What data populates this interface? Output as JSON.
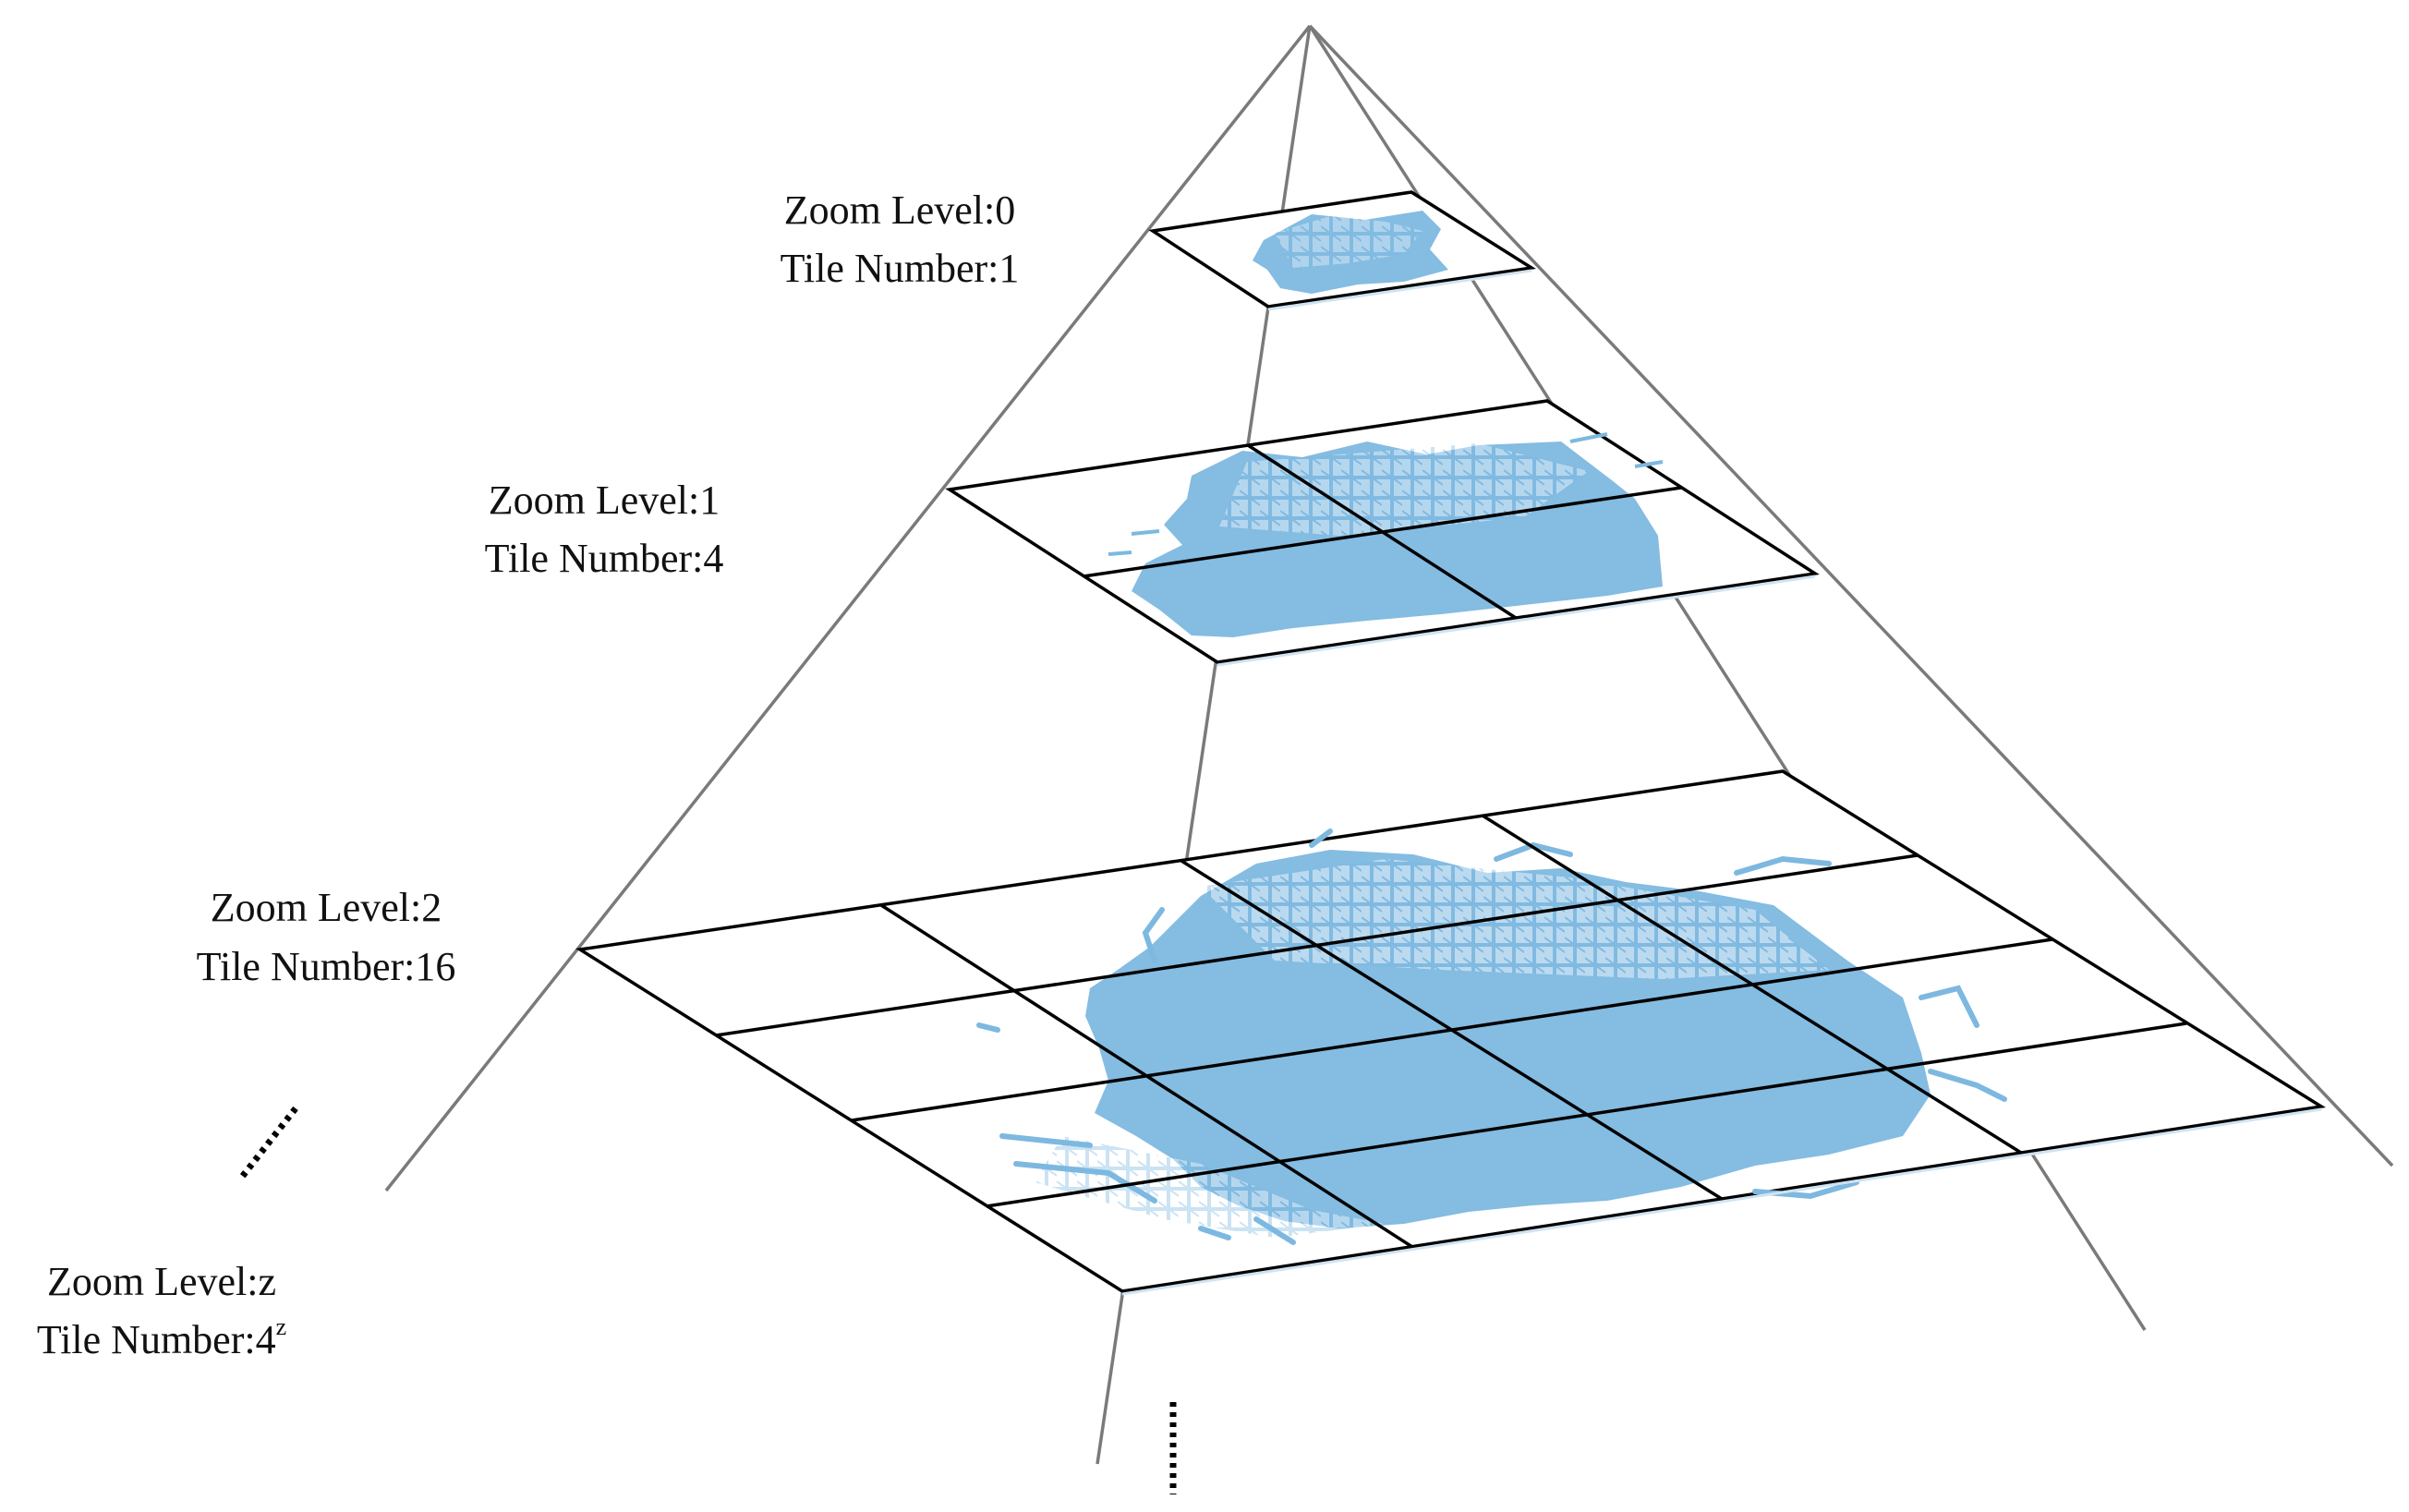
{
  "levels": [
    {
      "zoom_label": "Zoom Level:0",
      "tile_label": "Tile Number:1"
    },
    {
      "zoom_label": "Zoom Level:1",
      "tile_label": "Tile Number:4"
    },
    {
      "zoom_label": "Zoom Level:2",
      "tile_label": "Tile Number:16"
    },
    {
      "zoom_label": "Zoom Level:z",
      "tile_label": "Tile Number:4",
      "tile_superscript": "z"
    }
  ],
  "colors": {
    "map_fill": "#7db8e0",
    "edge": "#7a7a7a",
    "grid": "#000000"
  }
}
